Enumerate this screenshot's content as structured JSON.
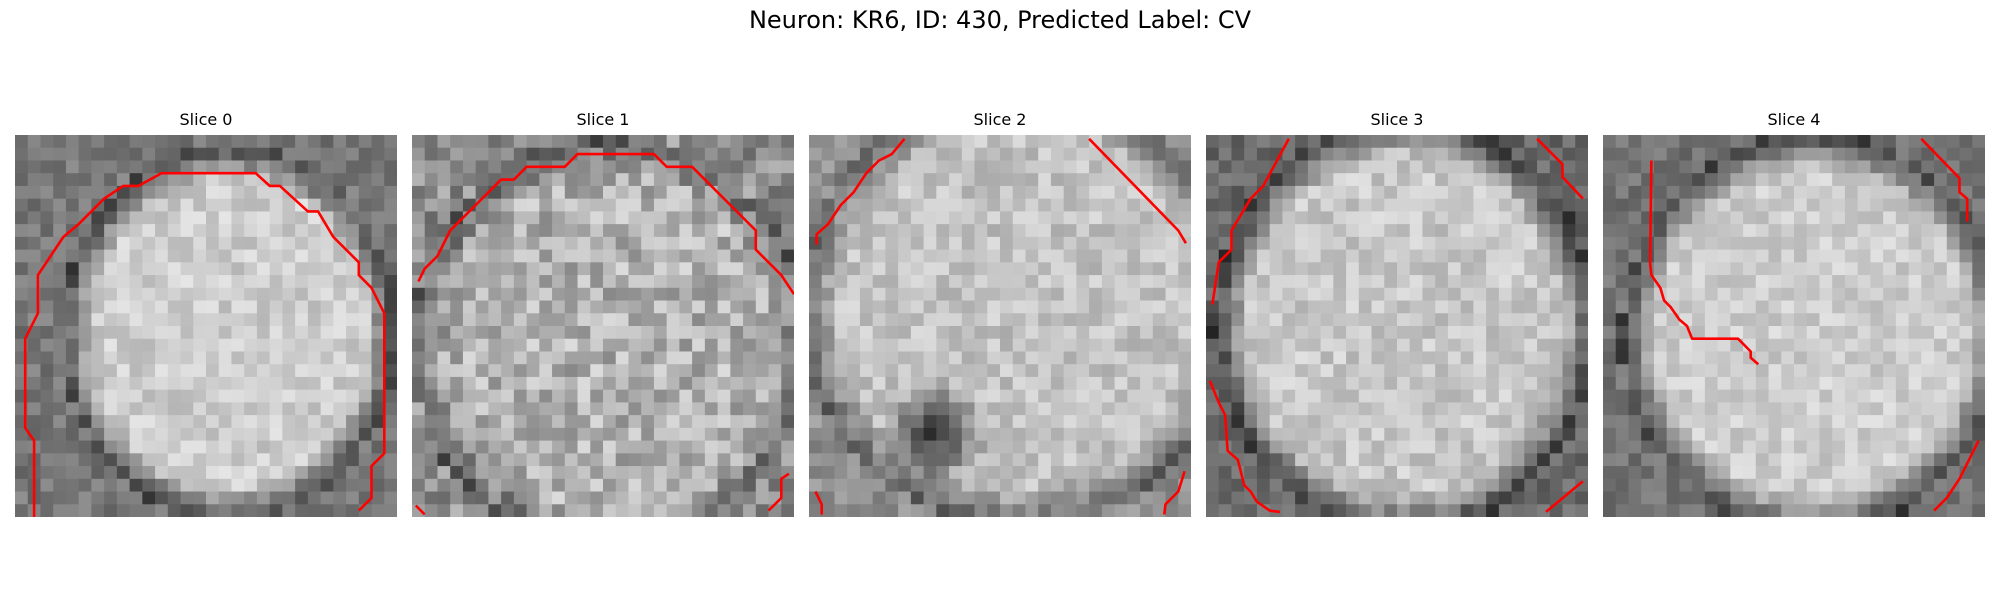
{
  "figure": {
    "title": "Neuron: KR6, ID: 430, Predicted Label: CV",
    "contour_color": "#ff0000"
  },
  "panels": [
    {
      "title": "Slice 0"
    },
    {
      "title": "Slice 1"
    },
    {
      "title": "Slice 2"
    },
    {
      "title": "Slice 3"
    },
    {
      "title": "Slice 4"
    }
  ]
}
